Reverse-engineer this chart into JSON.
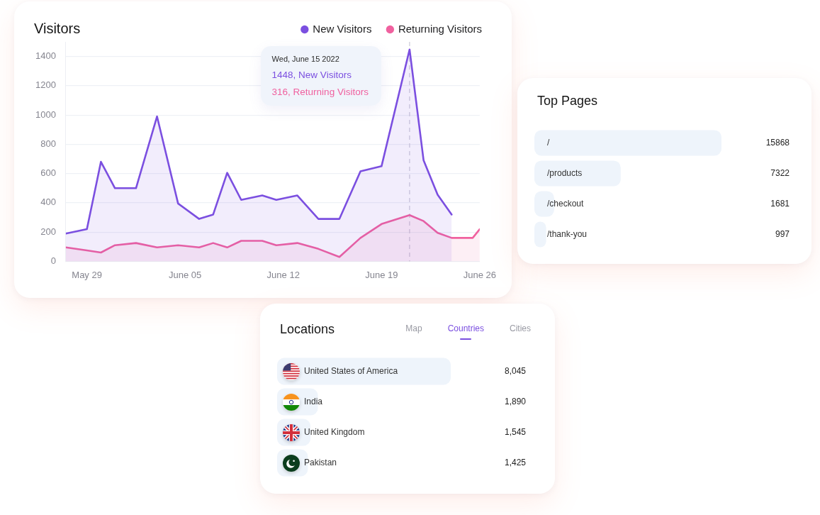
{
  "chart_data": [
    {
      "type": "area",
      "title": "Visitors",
      "x": [
        "2022-05-27T12:00",
        "2022-05-29",
        "2022-05-30",
        "2022-05-31",
        "2022-06-01T12:00",
        "2022-06-03",
        "2022-06-04T12:00",
        "2022-06-06",
        "2022-06-07",
        "2022-06-08",
        "2022-06-09",
        "2022-06-10T12:00",
        "2022-06-11T12:00",
        "2022-06-13",
        "2022-06-14T12:00",
        "2022-06-16",
        "2022-06-17T12:00",
        "2022-06-19",
        "2022-06-21",
        "2022-06-22",
        "2022-06-23",
        "2022-06-24",
        "2022-06-25T12:00",
        "2022-06-26"
      ],
      "series": [
        {
          "name": "New Visitors",
          "color": "#7b4fe0",
          "values": [
            190,
            220,
            680,
            500,
            500,
            990,
            395,
            290,
            320,
            605,
            420,
            450,
            420,
            450,
            290,
            290,
            615,
            650,
            1448,
            690,
            455,
            320,
            null,
            null
          ]
        },
        {
          "name": "Returning Visitors",
          "color": "#f0619f",
          "values": [
            95,
            75,
            60,
            110,
            125,
            95,
            110,
            95,
            125,
            95,
            140,
            140,
            110,
            125,
            85,
            30,
            160,
            255,
            316,
            275,
            195,
            160,
            160,
            220
          ]
        }
      ],
      "xlim": [
        "2022-05-27T12:00",
        "2022-06-26"
      ],
      "xticks": [
        {
          "value": "2022-05-29",
          "label": "May 29"
        },
        {
          "value": "2022-06-05",
          "label": "June 05"
        },
        {
          "value": "2022-06-12",
          "label": "June 12"
        },
        {
          "value": "2022-06-19",
          "label": "June 19"
        },
        {
          "value": "2022-06-26",
          "label": "June 26"
        }
      ],
      "ylim": [
        0,
        1500
      ],
      "yticks": [
        0,
        200,
        400,
        600,
        800,
        1000,
        1200,
        1400
      ],
      "grid": "y",
      "legend": "top right",
      "marker": "none",
      "ref_lines": [
        {
          "axis": "x",
          "value": "2022-06-21",
          "line_style": "dashed",
          "color": "#d2d2dc"
        }
      ],
      "annotations": [
        "Wed, June 15 2022",
        "1448, New Visitors",
        "316, Returning Visitors"
      ]
    },
    {
      "type": "bar",
      "orientation": "horizontal",
      "title": "Top Pages",
      "categories": [
        "/",
        "/products",
        "/checkout",
        "/thank-you"
      ],
      "values": [
        15868,
        7322,
        1681,
        997
      ],
      "color": "#eef4fb",
      "data_labels": true,
      "tick_labels": "y"
    },
    {
      "type": "bar",
      "orientation": "horizontal",
      "title": "Locations",
      "categories": [
        "United States of America",
        "India",
        "United Kingdom",
        "Pakistan"
      ],
      "values": [
        8045,
        1890,
        1545,
        1425
      ],
      "value_labels": [
        "8,045",
        "1,890",
        "1,545",
        "1,425"
      ],
      "color": "#eef4fb",
      "tick_labels": "y",
      "annotations": [
        "Map",
        "Countries",
        "Cities"
      ]
    }
  ]
}
